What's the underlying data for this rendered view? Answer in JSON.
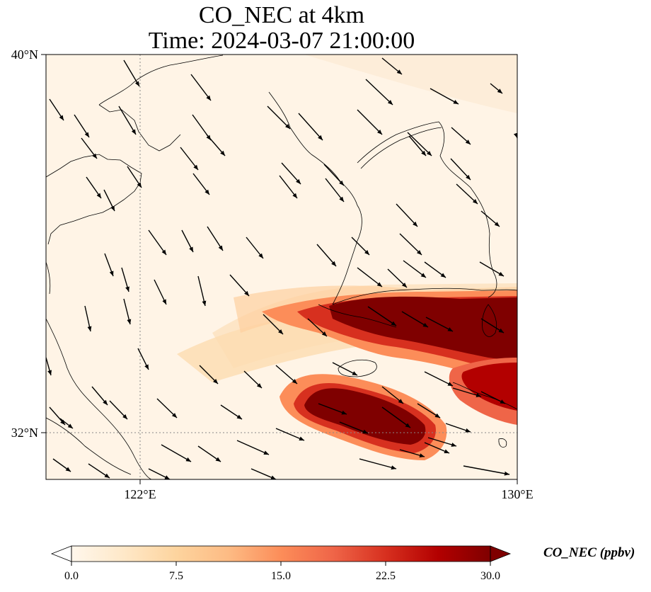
{
  "title": {
    "line1": "CO_NEC at 4km",
    "line2": "Time: 2024-03-07 21:00:00"
  },
  "map": {
    "lat_labels": [
      "40°N",
      "32°N"
    ],
    "lon_labels": [
      "122°E",
      "130°E"
    ],
    "lon_range": [
      120.4,
      130.0
    ],
    "lat_range": [
      31.0,
      40.0
    ]
  },
  "colorbar": {
    "title": "CO_NEC (ppbv)",
    "ticks": [
      "0.0",
      "7.5",
      "15.0",
      "22.5",
      "30.0"
    ],
    "min": 0,
    "max": 30,
    "extend": "both",
    "colors": [
      "#fff7ec",
      "#fee8c8",
      "#fdd49e",
      "#fdbb84",
      "#fc8d59",
      "#ef6548",
      "#d7301f",
      "#b30000",
      "#7f0000"
    ]
  }
}
